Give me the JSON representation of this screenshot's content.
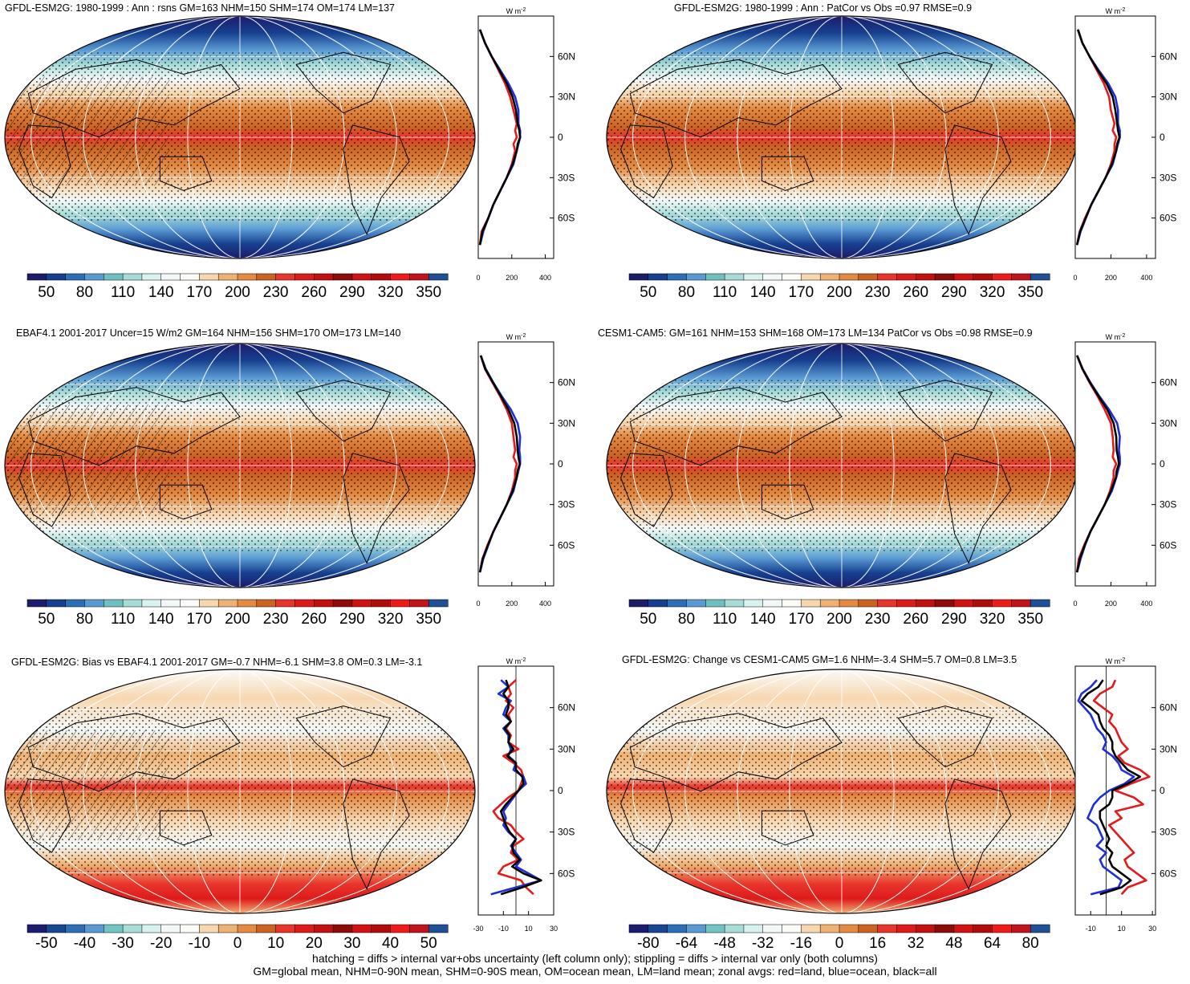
{
  "palettes": {
    "abs": [
      "#1c1c6a",
      "#16408f",
      "#2c6fb7",
      "#5a9ad3",
      "#6fbfbf",
      "#a6dbd6",
      "#d9f2f0",
      "#f2f8f8",
      "#fbfbf8",
      "#f7d7b0",
      "#f0b274",
      "#e48a42",
      "#cc6323",
      "#e8352c",
      "#dd1b1b",
      "#c20f0f",
      "#8e0b0b",
      "#d21212",
      "#b20b0b",
      "#ef1b1b",
      "#c1131b",
      "#1f4f94"
    ],
    "diff": [
      "#1b1b72",
      "#174790",
      "#2c6fb7",
      "#5a9ad3",
      "#72c4c2",
      "#a8dcd7",
      "#d6f1ee",
      "#f3f8f7",
      "#fbfbf8",
      "#f7d7b0",
      "#f0b274",
      "#e48a42",
      "#cc6323",
      "#e8352c",
      "#dd1b1b",
      "#c20f0f",
      "#8e0b0b",
      "#d21212",
      "#b20b0b",
      "#ef1b1b",
      "#c1131b",
      "#1f4f94"
    ]
  },
  "panels": [
    {
      "title": "GFDL-ESM2G: 1980-1999 : Ann : rsns GM=163 NHM=150 SHM=174 OM=174 LM=137",
      "cbar_labels": [
        "50",
        "80",
        "110",
        "140",
        "170",
        "200",
        "230",
        "260",
        "290",
        "320",
        "350"
      ],
      "zonal_unit": "W m",
      "zonal_xticks": [
        "0",
        "200",
        "400"
      ],
      "zonal_lat_ticks": [
        "60N",
        "30N",
        "0",
        "30S",
        "60S"
      ],
      "zonal": {
        "xlim": [
          0,
          450
        ],
        "lat": [
          80,
          70,
          60,
          50,
          40,
          30,
          20,
          10,
          5,
          0,
          -5,
          -10,
          -20,
          -30,
          -40,
          -50,
          -60,
          -70,
          -80
        ],
        "land": [
          10,
          40,
          80,
          120,
          160,
          190,
          210,
          230,
          220,
          230,
          210,
          220,
          200,
          170,
          130,
          90,
          60,
          20,
          10
        ],
        "ocean": [
          10,
          40,
          80,
          130,
          180,
          220,
          240,
          240,
          250,
          250,
          240,
          230,
          210,
          170,
          130,
          90,
          60,
          30,
          10
        ],
        "all": [
          10,
          40,
          80,
          125,
          170,
          205,
          225,
          235,
          245,
          250,
          235,
          230,
          205,
          170,
          130,
          90,
          60,
          25,
          10
        ]
      }
    },
    {
      "title": "GFDL-ESM2G: 1980-1999 : Ann : PatCor vs Obs =0.97 RMSE=0.9",
      "cbar_labels": [
        "50",
        "80",
        "110",
        "140",
        "170",
        "200",
        "230",
        "260",
        "290",
        "320",
        "350"
      ],
      "zonal_unit": "W m",
      "zonal_xticks": [
        "0",
        "200",
        "400"
      ],
      "zonal_lat_ticks": [
        "60N",
        "30N",
        "0",
        "30S",
        "60S"
      ],
      "zonal": {
        "xlim": [
          0,
          450
        ],
        "lat": [
          80,
          70,
          60,
          50,
          40,
          30,
          20,
          10,
          5,
          0,
          -5,
          -10,
          -20,
          -30,
          -40,
          -50,
          -60,
          -70,
          -80
        ],
        "land": [
          15,
          40,
          80,
          120,
          160,
          190,
          200,
          220,
          210,
          230,
          220,
          220,
          200,
          170,
          130,
          90,
          55,
          25,
          10
        ],
        "ocean": [
          15,
          40,
          80,
          130,
          185,
          225,
          240,
          240,
          250,
          250,
          240,
          230,
          210,
          170,
          130,
          90,
          60,
          30,
          10
        ],
        "all": [
          15,
          40,
          80,
          125,
          175,
          210,
          225,
          235,
          240,
          248,
          235,
          230,
          205,
          170,
          130,
          90,
          58,
          27,
          10
        ]
      }
    },
    {
      "title": "EBAF4.1 2001-2017 Uncer=15 W/m2 GM=164 NHM=156 SHM=170 OM=173 LM=140",
      "cbar_labels": [
        "50",
        "80",
        "110",
        "140",
        "170",
        "200",
        "230",
        "260",
        "290",
        "320",
        "350"
      ],
      "zonal_unit": "W m",
      "zonal_xticks": [
        "0",
        "200",
        "400"
      ],
      "zonal_lat_ticks": [
        "60N",
        "30N",
        "0",
        "30S",
        "60S"
      ],
      "zonal": {
        "xlim": [
          0,
          450
        ],
        "lat": [
          80,
          70,
          60,
          50,
          40,
          30,
          20,
          10,
          5,
          0,
          -5,
          -10,
          -20,
          -30,
          -40,
          -50,
          -60,
          -70,
          -80
        ],
        "land": [
          15,
          40,
          85,
          130,
          170,
          200,
          210,
          220,
          210,
          230,
          220,
          220,
          200,
          170,
          130,
          90,
          55,
          25,
          10
        ],
        "ocean": [
          15,
          45,
          90,
          140,
          195,
          235,
          250,
          245,
          250,
          250,
          240,
          230,
          210,
          170,
          130,
          90,
          60,
          30,
          10
        ],
        "all": [
          15,
          42,
          88,
          135,
          180,
          215,
          230,
          235,
          240,
          248,
          235,
          230,
          205,
          170,
          130,
          90,
          58,
          27,
          10
        ]
      }
    },
    {
      "title": "CESM1-CAM5: GM=161 NHM=153 SHM=168 OM=173 LM=134 PatCor vs Obs =0.98 RMSE=0.9",
      "cbar_labels": [
        "50",
        "80",
        "110",
        "140",
        "170",
        "200",
        "230",
        "260",
        "290",
        "320",
        "350"
      ],
      "zonal_unit": "W m",
      "zonal_xticks": [
        "0",
        "200",
        "400"
      ],
      "zonal_lat_ticks": [
        "60N",
        "30N",
        "0",
        "30S",
        "60S"
      ],
      "zonal": {
        "xlim": [
          0,
          450
        ],
        "lat": [
          80,
          70,
          60,
          50,
          40,
          30,
          20,
          10,
          5,
          0,
          -5,
          -10,
          -20,
          -30,
          -40,
          -50,
          -60,
          -70,
          -80
        ],
        "land": [
          10,
          40,
          80,
          125,
          165,
          200,
          210,
          215,
          210,
          230,
          215,
          215,
          195,
          165,
          125,
          85,
          50,
          20,
          10
        ],
        "ocean": [
          10,
          42,
          85,
          135,
          190,
          235,
          250,
          245,
          250,
          250,
          240,
          230,
          205,
          165,
          125,
          85,
          55,
          30,
          10
        ],
        "all": [
          10,
          41,
          83,
          130,
          180,
          215,
          230,
          232,
          240,
          245,
          232,
          228,
          200,
          165,
          125,
          85,
          53,
          25,
          10
        ]
      }
    },
    {
      "title": "GFDL-ESM2G: Bias vs EBAF4.1 2001-2017 GM=-0.7 NHM=-6.1 SHM=3.8 OM=0.3 LM=-3.1",
      "cbar_labels": [
        "-50",
        "-40",
        "-30",
        "-20",
        "-10",
        "0",
        "10",
        "20",
        "30",
        "40",
        "50"
      ],
      "zonal_unit": "W m",
      "zonal_xticks": [
        "-30",
        "-10",
        "10",
        "30"
      ],
      "zonal_lat_ticks": [
        "60N",
        "30N",
        "0",
        "30S",
        "60S"
      ],
      "zonal": {
        "xlim": [
          -30,
          30
        ],
        "lat": [
          80,
          75,
          70,
          65,
          60,
          55,
          50,
          45,
          40,
          35,
          30,
          25,
          20,
          15,
          10,
          5,
          0,
          -5,
          -10,
          -15,
          -20,
          -25,
          -30,
          -35,
          -40,
          -45,
          -50,
          -55,
          -60,
          -65,
          -70,
          -75
        ],
        "land": [
          0,
          -6,
          -4,
          -8,
          -2,
          -6,
          -4,
          -8,
          -4,
          -6,
          2,
          -10,
          -2,
          4,
          6,
          4,
          2,
          -6,
          -12,
          -18,
          -14,
          -4,
          0,
          6,
          -2,
          -4,
          2,
          -10,
          -14,
          4,
          8,
          14
        ],
        "ocean": [
          -12,
          -6,
          -14,
          -4,
          -8,
          -10,
          -4,
          -10,
          -6,
          -6,
          -4,
          -6,
          0,
          -2,
          6,
          8,
          2,
          -2,
          -6,
          -10,
          -8,
          -10,
          -6,
          0,
          -4,
          0,
          4,
          0,
          10,
          20,
          0,
          -20
        ],
        "all": [
          -8,
          -6,
          -10,
          -6,
          -6,
          -8,
          -4,
          -9,
          -5,
          -6,
          -2,
          -7,
          0,
          0,
          5,
          6,
          2,
          -3,
          -8,
          -12,
          -10,
          -8,
          -5,
          0,
          -3,
          -2,
          3,
          -3,
          6,
          20,
          5,
          -12
        ]
      }
    },
    {
      "title": "GFDL-ESM2G: Change vs CESM1-CAM5 GM=1.6 NHM=-3.4 SHM=5.7 OM=0.8 LM=3.5",
      "cbar_labels": [
        "-80",
        "-64",
        "-48",
        "-32",
        "-16",
        "0",
        "16",
        "32",
        "48",
        "64",
        "80"
      ],
      "zonal_unit": "W m",
      "zonal_xticks": [
        "-10",
        "10",
        "30"
      ],
      "zonal_lat_ticks": [
        "60N",
        "30N",
        "0",
        "30S",
        "60S"
      ],
      "zonal": {
        "xlim": [
          -20,
          32
        ],
        "lat": [
          80,
          75,
          70,
          65,
          60,
          55,
          50,
          45,
          40,
          35,
          30,
          25,
          20,
          15,
          10,
          5,
          0,
          -5,
          -10,
          -15,
          -20,
          -25,
          -30,
          -35,
          -40,
          -45,
          -50,
          -55,
          -60,
          -65,
          -70,
          -75
        ],
        "land": [
          6,
          4,
          -4,
          -8,
          -2,
          4,
          2,
          6,
          8,
          10,
          14,
          8,
          12,
          22,
          28,
          16,
          6,
          18,
          24,
          6,
          10,
          2,
          6,
          10,
          14,
          18,
          12,
          14,
          20,
          26,
          14,
          10
        ],
        "ocean": [
          -6,
          -10,
          -16,
          -18,
          -14,
          -10,
          -8,
          -6,
          -2,
          0,
          -2,
          4,
          8,
          10,
          18,
          12,
          2,
          -4,
          -8,
          -10,
          -12,
          -6,
          -4,
          -2,
          -6,
          0,
          -4,
          -2,
          4,
          10,
          8,
          -10
        ],
        "all": [
          -2,
          -5,
          -12,
          -16,
          -10,
          -5,
          -4,
          -2,
          2,
          4,
          4,
          6,
          10,
          14,
          22,
          14,
          4,
          4,
          2,
          -4,
          -4,
          -2,
          0,
          2,
          0,
          4,
          2,
          4,
          10,
          16,
          10,
          -4
        ]
      }
    }
  ],
  "footer": {
    "line1": "hatching = diffs > internal var+obs uncertainty (left column only); stippling = diffs > internal var only (both columns)",
    "line2": "GM=global mean, NHM=0-90N mean, SHM=0-90S mean, OM=ocean mean, LM=land mean; zonal avgs: red=land, blue=ocean, black=all"
  }
}
